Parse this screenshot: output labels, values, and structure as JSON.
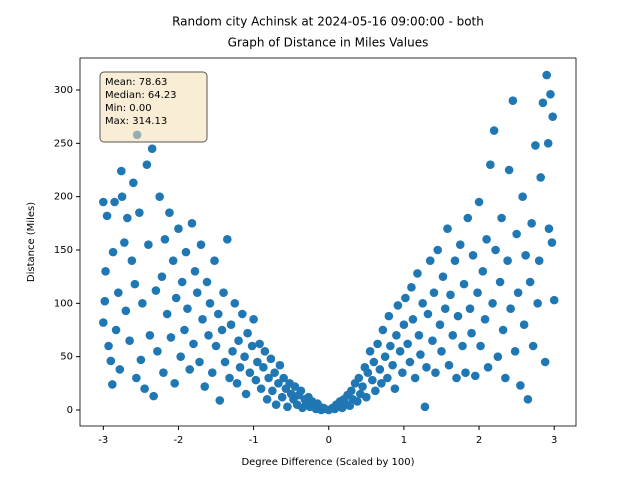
{
  "chart_data": {
    "type": "scatter",
    "title": "Random city Achinsk at 2024-05-16 09:00:00  - both",
    "subtitle": "Graph of Distance in Miles Values",
    "x_label": "Degree Difference (Scaled by 100)",
    "y_label": "Distance (Miles)",
    "stats": [
      "Mean: 78.63",
      "Median: 64.23",
      "Min: 0.00",
      "Max: 314.13"
    ],
    "color": "#1f77b4",
    "xlim": [
      -3.31,
      3.29
    ],
    "ylim": [
      -15,
      330
    ],
    "xticks": [
      -3,
      -2,
      -1,
      0,
      1,
      2,
      3
    ],
    "yticks": [
      0,
      50,
      100,
      150,
      200,
      250,
      300
    ],
    "x": [
      -3.0,
      -3.0,
      -2.98,
      -2.97,
      -2.95,
      -2.93,
      -2.9,
      -2.88,
      -2.87,
      -2.85,
      -2.83,
      -2.8,
      -2.78,
      -2.76,
      -2.75,
      -2.72,
      -2.7,
      -2.68,
      -2.65,
      -2.62,
      -2.6,
      -2.58,
      -2.56,
      -2.55,
      -2.52,
      -2.5,
      -2.48,
      -2.45,
      -2.42,
      -2.4,
      -2.38,
      -2.35,
      -2.33,
      -2.3,
      -2.28,
      -2.25,
      -2.22,
      -2.2,
      -2.18,
      -2.15,
      -2.12,
      -2.1,
      -2.07,
      -2.05,
      -2.03,
      -2.0,
      -1.97,
      -1.95,
      -1.92,
      -1.9,
      -1.88,
      -1.85,
      -1.82,
      -1.8,
      -1.78,
      -1.75,
      -1.72,
      -1.7,
      -1.68,
      -1.65,
      -1.62,
      -1.6,
      -1.58,
      -1.55,
      -1.52,
      -1.5,
      -1.47,
      -1.45,
      -1.42,
      -1.4,
      -1.38,
      -1.35,
      -1.32,
      -1.3,
      -1.28,
      -1.25,
      -1.22,
      -1.2,
      -1.18,
      -1.15,
      -1.12,
      -1.1,
      -1.08,
      -1.05,
      -1.02,
      -1.0,
      -0.97,
      -0.95,
      -0.92,
      -0.9,
      -0.87,
      -0.85,
      -0.82,
      -0.8,
      -0.77,
      -0.75,
      -0.72,
      -0.7,
      -0.67,
      -0.65,
      -0.62,
      -0.6,
      -0.57,
      -0.55,
      -0.52,
      -0.5,
      -0.47,
      -0.45,
      -0.42,
      -0.4,
      -0.37,
      -0.35,
      -0.32,
      -0.3,
      -0.27,
      -0.25,
      -0.22,
      -0.2,
      -0.17,
      -0.15,
      -0.12,
      -0.1,
      -0.07,
      -0.05,
      0,
      0.05,
      0.08,
      0.1,
      0.12,
      0.15,
      0.18,
      0.2,
      0.22,
      0.25,
      0.28,
      0.3,
      0.32,
      0.35,
      0.38,
      0.4,
      0.42,
      0.45,
      0.48,
      0.5,
      0.52,
      0.55,
      0.58,
      0.6,
      0.62,
      0.65,
      0.68,
      0.7,
      0.72,
      0.75,
      0.78,
      0.8,
      0.82,
      0.85,
      0.88,
      0.9,
      0.92,
      0.95,
      0.98,
      1.0,
      1.02,
      1.05,
      1.08,
      1.1,
      1.12,
      1.15,
      1.18,
      1.2,
      1.22,
      1.25,
      1.28,
      1.3,
      1.32,
      1.35,
      1.38,
      1.4,
      1.42,
      1.45,
      1.48,
      1.5,
      1.52,
      1.55,
      1.58,
      1.6,
      1.62,
      1.65,
      1.68,
      1.7,
      1.72,
      1.75,
      1.78,
      1.8,
      1.82,
      1.85,
      1.88,
      1.9,
      1.92,
      1.95,
      1.98,
      2.0,
      2.02,
      2.05,
      2.08,
      2.1,
      2.12,
      2.15,
      2.18,
      2.2,
      2.22,
      2.25,
      2.28,
      2.3,
      2.32,
      2.35,
      2.38,
      2.4,
      2.42,
      2.45,
      2.48,
      2.5,
      2.52,
      2.55,
      2.58,
      2.6,
      2.62,
      2.65,
      2.68,
      2.7,
      2.72,
      2.75,
      2.78,
      2.8,
      2.82,
      2.85,
      2.88,
      2.9,
      2.92,
      2.93,
      2.95,
      2.97,
      2.98,
      3.0
    ],
    "values": [
      195,
      82,
      102,
      130,
      182,
      60,
      46,
      24,
      148,
      195,
      75,
      110,
      38,
      224,
      200,
      157,
      93,
      180,
      65,
      140,
      213,
      118,
      30,
      258,
      185,
      47,
      100,
      20,
      230,
      155,
      70,
      245,
      13,
      112,
      55,
      200,
      125,
      35,
      160,
      90,
      185,
      68,
      140,
      25,
      105,
      170,
      50,
      120,
      75,
      148,
      95,
      38,
      175,
      62,
      130,
      110,
      45,
      155,
      85,
      22,
      120,
      70,
      100,
      35,
      140,
      60,
      90,
      9,
      75,
      110,
      45,
      160,
      30,
      80,
      55,
      100,
      25,
      65,
      40,
      90,
      50,
      15,
      72,
      35,
      60,
      85,
      28,
      45,
      62,
      20,
      40,
      55,
      10,
      30,
      48,
      18,
      35,
      5,
      25,
      42,
      12,
      30,
      20,
      3,
      25,
      15,
      10,
      22,
      5,
      14,
      18,
      2,
      10,
      6,
      12,
      3,
      8,
      5,
      1,
      6,
      3,
      0,
      2,
      1,
      0,
      2,
      1,
      5,
      3,
      8,
      2,
      10,
      6,
      14,
      4,
      18,
      10,
      25,
      8,
      30,
      15,
      22,
      40,
      12,
      35,
      55,
      28,
      45,
      18,
      62,
      38,
      25,
      75,
      50,
      30,
      88,
      60,
      42,
      20,
      70,
      98,
      55,
      35,
      80,
      105,
      62,
      45,
      115,
      85,
      30,
      128,
      70,
      52,
      100,
      3,
      40,
      90,
      140,
      65,
      110,
      35,
      150,
      80,
      55,
      125,
      95,
      170,
      42,
      108,
      70,
      140,
      30,
      88,
      155,
      60,
      118,
      35,
      180,
      95,
      72,
      145,
      32,
      110,
      195,
      60,
      130,
      85,
      160,
      40,
      230,
      100,
      262,
      150,
      50,
      120,
      180,
      75,
      30,
      140,
      225,
      95,
      290,
      55,
      165,
      110,
      23,
      200,
      80,
      145,
      10,
      120,
      175,
      60,
      248,
      100,
      140,
      218,
      288,
      45,
      314,
      250,
      170,
      296,
      157,
      275,
      103
    ]
  }
}
